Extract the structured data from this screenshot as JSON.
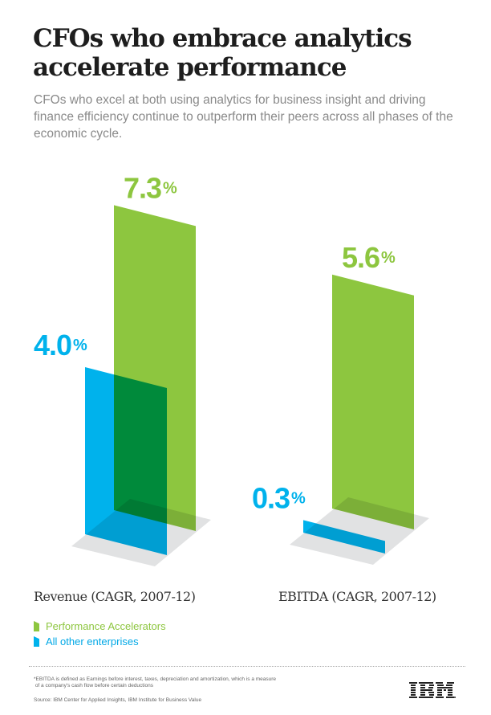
{
  "title": [
    "CFOs who embrace analytics",
    "accelerate performance"
  ],
  "subtitle": "CFOs who excel at both using analytics for business insight and driving finance efficiency continue to outperform their peers across all phases of the economic cycle.",
  "chart_data": {
    "type": "bar",
    "categories": [
      "Revenue (CAGR, 2007-12)",
      "EBITDA (CAGR, 2007-12)"
    ],
    "series": [
      {
        "name": "Performance Accelerators",
        "values": [
          7.3,
          5.6
        ],
        "labels": [
          "7.3",
          "5.6"
        ],
        "color": "#8dc63f"
      },
      {
        "name": "All other enterprises",
        "values": [
          4.0,
          0.3
        ],
        "labels": [
          "4.0",
          "0.3"
        ],
        "color": "#00b2ec"
      }
    ],
    "unit": "%",
    "style": "3d-perspective",
    "floor_color": "#e1e2e3"
  },
  "footnote": [
    "*EBITDA is defined as Earnings before interest, taxes, depreciation and amortization, which is a measure",
    "of a company's cash flow before certain deductions"
  ],
  "source": "Source: IBM Center for Applied Insights, IBM Institute for Business Value",
  "logo": "IBM"
}
